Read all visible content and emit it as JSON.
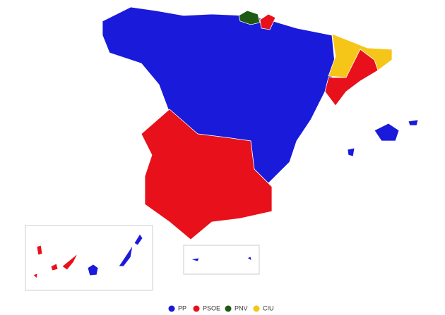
{
  "legend": [
    {
      "name": "PP",
      "color": "#1a1adb"
    },
    {
      "name": "PSOE",
      "color": "#e8101a"
    },
    {
      "name": "PNV",
      "color": "#1e5a14"
    },
    {
      "name": "CIU",
      "color": "#f5c518"
    }
  ]
}
